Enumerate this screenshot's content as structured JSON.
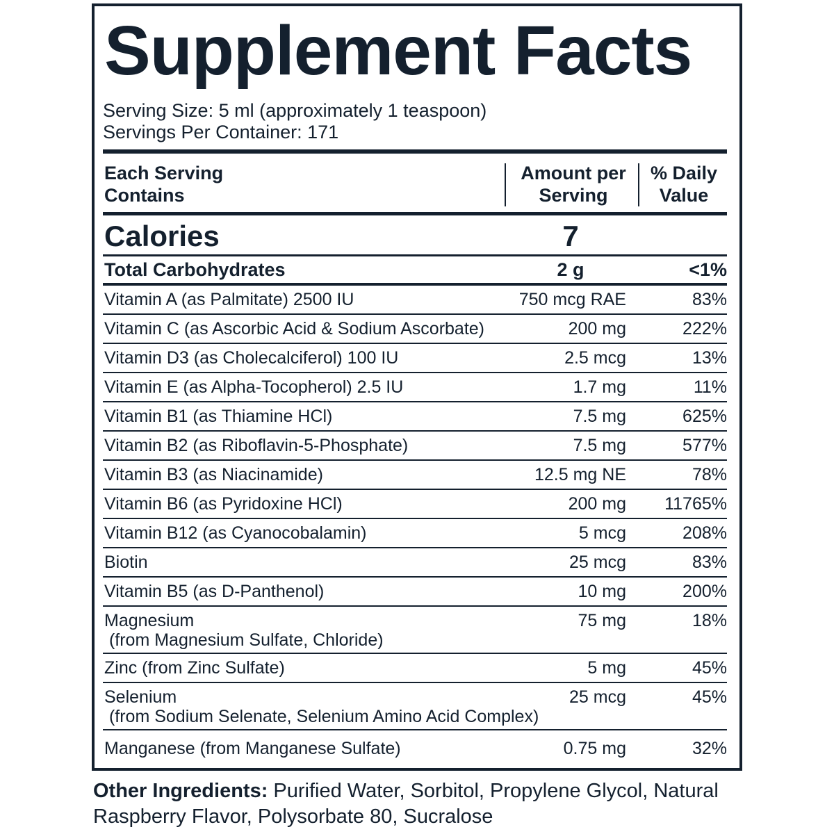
{
  "label": {
    "title": "Supplement Facts",
    "serving_size": "Serving Size: 5 ml (approximately 1 teaspoon)",
    "servings_per_container": "Servings Per Container: 171",
    "header": {
      "name": "Each Serving\nContains",
      "amount": "Amount per\nServing",
      "daily_value": "% Daily\nValue"
    },
    "calories": {
      "name": "Calories",
      "amount": "7"
    },
    "total_carbohydrates": {
      "name": "Total Carbohydrates",
      "amount": "2 g",
      "daily_value": "<1%"
    },
    "rows": [
      {
        "name": "Vitamin A (as Palmitate) 2500 IU",
        "amount": "750 mcg RAE",
        "daily_value": "83%"
      },
      {
        "name": "Vitamin C (as Ascorbic Acid & Sodium Ascorbate)",
        "amount": "200 mg",
        "daily_value": "222%"
      },
      {
        "name": "Vitamin D3 (as Cholecalciferol) 100 IU",
        "amount": "2.5 mcg",
        "daily_value": "13%"
      },
      {
        "name": "Vitamin E (as Alpha-Tocopherol) 2.5 IU",
        "amount": "1.7 mg",
        "daily_value": "11%"
      },
      {
        "name": "Vitamin B1 (as Thiamine HCl)",
        "amount": "7.5 mg",
        "daily_value": "625%"
      },
      {
        "name": "Vitamin B2 (as Riboflavin-5-Phosphate)",
        "amount": "7.5 mg",
        "daily_value": "577%"
      },
      {
        "name": "Vitamin B3 (as Niacinamide)",
        "amount": "12.5 mg NE",
        "daily_value": "78%"
      },
      {
        "name": "Vitamin B6 (as Pyridoxine HCl)",
        "amount": "200 mg",
        "daily_value": "11765%"
      },
      {
        "name": "Vitamin B12 (as Cyanocobalamin)",
        "amount": "5 mcg",
        "daily_value": "208%"
      },
      {
        "name": "Biotin",
        "amount": "25 mcg",
        "daily_value": "83%"
      },
      {
        "name": "Vitamin B5 (as D-Panthenol)",
        "amount": "10 mg",
        "daily_value": "200%"
      },
      {
        "name": "Magnesium\n (from Magnesium Sulfate, Chloride)",
        "amount": "75 mg",
        "daily_value": "18%"
      },
      {
        "name": "Zinc (from Zinc Sulfate)",
        "amount": "5 mg",
        "daily_value": "45%"
      },
      {
        "name": "Selenium\n (from Sodium Selenate, Selenium Amino Acid Complex)",
        "amount": "25 mcg",
        "daily_value": "45%"
      },
      {
        "name": "Manganese (from Manganese Sulfate)",
        "amount": "0.75 mg",
        "daily_value": "32%"
      }
    ],
    "other_ingredients": {
      "label": "Other Ingredients:",
      "text": "Purified Water, Sorbitol, Propylene Glycol, Natural Raspberry Flavor, Polysorbate 80, Sucralose"
    }
  }
}
